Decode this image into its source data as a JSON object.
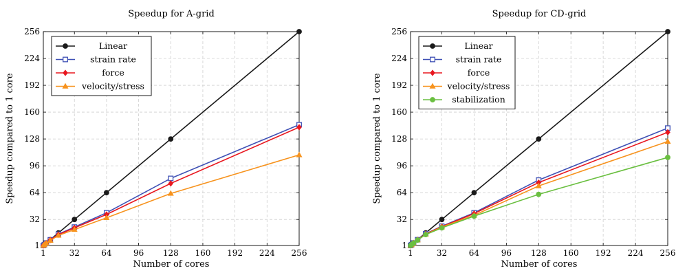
{
  "chart_data": [
    {
      "type": "line",
      "title": "Speedup for A-grid",
      "xlabel": "Number of cores",
      "ylabel": "Speedup compared to 1 core",
      "xlim": [
        1,
        256
      ],
      "ylim": [
        1,
        256
      ],
      "xticks": [
        1,
        32,
        64,
        96,
        128,
        160,
        192,
        224,
        256
      ],
      "yticks": [
        1,
        32,
        64,
        96,
        128,
        160,
        192,
        224,
        256
      ],
      "grid": true,
      "legend": "top-left",
      "series": [
        {
          "name": "Linear",
          "color": "#1a1a1a",
          "marker": "circle",
          "x": [
            1,
            2,
            4,
            8,
            16,
            32,
            64,
            128,
            256
          ],
          "y": [
            1,
            2,
            4,
            8,
            16,
            32,
            64,
            128,
            256
          ]
        },
        {
          "name": "strain rate",
          "color": "#3f51b5",
          "marker": "square",
          "x": [
            1,
            2,
            4,
            8,
            16,
            32,
            64,
            128,
            256
          ],
          "y": [
            1,
            2,
            4,
            7.8,
            14.5,
            23,
            40,
            81,
            145
          ]
        },
        {
          "name": "force",
          "color": "#e8171f",
          "marker": "diamond",
          "x": [
            1,
            2,
            4,
            8,
            16,
            32,
            64,
            128,
            256
          ],
          "y": [
            1,
            2,
            3.9,
            7.6,
            14,
            22,
            38,
            75,
            142
          ]
        },
        {
          "name": "velocity/stress",
          "color": "#f7931e",
          "marker": "triangle",
          "x": [
            1,
            2,
            4,
            8,
            16,
            32,
            64,
            128,
            256
          ],
          "y": [
            1,
            2,
            3.8,
            7,
            13,
            20,
            34,
            63,
            109
          ]
        }
      ]
    },
    {
      "type": "line",
      "title": "Speedup for CD-grid",
      "xlabel": "Number of cores",
      "ylabel": "Speedup compared to 1 core",
      "xlim": [
        1,
        256
      ],
      "ylim": [
        1,
        256
      ],
      "xticks": [
        1,
        32,
        64,
        96,
        128,
        160,
        192,
        224,
        256
      ],
      "yticks": [
        1,
        32,
        64,
        96,
        128,
        160,
        192,
        224,
        256
      ],
      "grid": true,
      "legend": "top-left",
      "series": [
        {
          "name": "Linear",
          "color": "#1a1a1a",
          "marker": "circle",
          "x": [
            1,
            2,
            4,
            8,
            16,
            32,
            64,
            128,
            256
          ],
          "y": [
            1,
            2,
            4,
            8,
            16,
            32,
            64,
            128,
            256
          ]
        },
        {
          "name": "strain rate",
          "color": "#3f51b5",
          "marker": "square",
          "x": [
            1,
            2,
            4,
            8,
            16,
            32,
            64,
            128,
            256
          ],
          "y": [
            1,
            2,
            4,
            7.9,
            15,
            24,
            40,
            79,
            141
          ]
        },
        {
          "name": "force",
          "color": "#e8171f",
          "marker": "diamond",
          "x": [
            1,
            2,
            4,
            8,
            16,
            32,
            64,
            128,
            256
          ],
          "y": [
            1,
            2,
            4,
            7.8,
            14.7,
            23.5,
            39,
            76,
            136
          ]
        },
        {
          "name": "velocity/stress",
          "color": "#f7931e",
          "marker": "triangle",
          "x": [
            1,
            2,
            4,
            8,
            16,
            32,
            64,
            128,
            256
          ],
          "y": [
            1,
            2,
            3.9,
            7.6,
            14.3,
            23,
            37,
            72,
            125
          ]
        },
        {
          "name": "stabilization",
          "color": "#6abf40",
          "marker": "circle",
          "x": [
            1,
            2,
            4,
            8,
            16,
            32,
            64,
            128,
            256
          ],
          "y": [
            1,
            2,
            3.9,
            7.5,
            14,
            22,
            36,
            62,
            106
          ]
        }
      ]
    }
  ]
}
